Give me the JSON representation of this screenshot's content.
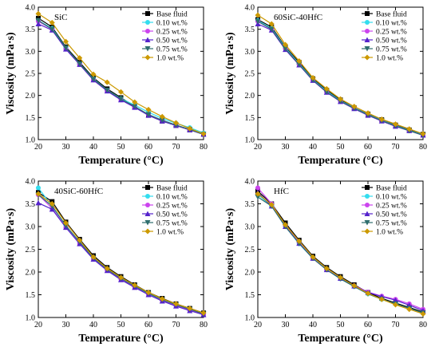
{
  "chart_data": [
    {
      "type": "line",
      "title": "SiC",
      "xlabel": "Temperature (°C)",
      "ylabel": "Viscosity (mPa·s)",
      "xlim": [
        20,
        80
      ],
      "ylim": [
        1.0,
        4.0
      ],
      "xticks": [
        "20",
        "30",
        "40",
        "50",
        "60",
        "70",
        "80"
      ],
      "yticks": [
        "1.0",
        "1.5",
        "2.0",
        "2.5",
        "3.0",
        "3.5",
        "4.0"
      ],
      "legend_position": "top-right",
      "x": [
        20,
        25,
        30,
        35,
        40,
        45,
        50,
        55,
        60,
        65,
        70,
        75,
        80
      ],
      "series": [
        {
          "name": "Base fluid",
          "color": "#000000",
          "marker": "square",
          "values": [
            3.75,
            3.55,
            3.1,
            2.75,
            2.4,
            2.15,
            1.95,
            1.75,
            1.55,
            1.42,
            1.32,
            1.22,
            1.12
          ]
        },
        {
          "name": "0.10 wt.%",
          "color": "#33ddee",
          "marker": "circle",
          "values": [
            3.7,
            3.52,
            3.08,
            2.72,
            2.38,
            2.12,
            1.93,
            1.78,
            1.62,
            1.48,
            1.37,
            1.27,
            1.15
          ]
        },
        {
          "name": "0.25 wt.%",
          "color": "#cc44ee",
          "marker": "circle",
          "values": [
            3.68,
            3.5,
            3.05,
            2.7,
            2.35,
            2.1,
            1.9,
            1.73,
            1.56,
            1.43,
            1.33,
            1.22,
            1.12
          ]
        },
        {
          "name": "0.50 wt.%",
          "color": "#5522cc",
          "marker": "triangle",
          "values": [
            3.62,
            3.48,
            3.05,
            2.7,
            2.35,
            2.1,
            1.9,
            1.73,
            1.55,
            1.42,
            1.32,
            1.22,
            1.12
          ]
        },
        {
          "name": "0.75 wt.%",
          "color": "#2e6e6e",
          "marker": "triangle-down",
          "values": [
            3.7,
            3.5,
            3.08,
            2.72,
            2.37,
            2.12,
            1.92,
            1.75,
            1.57,
            1.44,
            1.33,
            1.23,
            1.12
          ]
        },
        {
          "name": "1.0 wt.%",
          "color": "#cc9900",
          "marker": "diamond",
          "values": [
            3.85,
            3.65,
            3.22,
            2.85,
            2.48,
            2.3,
            2.08,
            1.85,
            1.68,
            1.52,
            1.38,
            1.25,
            1.13
          ]
        }
      ]
    },
    {
      "type": "line",
      "title": "60SiC-40HfC",
      "xlabel": "Temperature (°C)",
      "ylabel": "Viscosity (mPa·s)",
      "xlim": [
        20,
        80
      ],
      "ylim": [
        1.0,
        4.0
      ],
      "xticks": [
        "20",
        "30",
        "40",
        "50",
        "60",
        "70",
        "80"
      ],
      "yticks": [
        "1.0",
        "1.5",
        "2.0",
        "2.5",
        "3.0",
        "3.5",
        "4.0"
      ],
      "legend_position": "top-right",
      "x": [
        20,
        25,
        30,
        35,
        40,
        45,
        50,
        55,
        60,
        65,
        70,
        75,
        80
      ],
      "series": [
        {
          "name": "Base fluid",
          "color": "#000000",
          "marker": "square",
          "values": [
            3.72,
            3.55,
            3.1,
            2.75,
            2.38,
            2.12,
            1.9,
            1.72,
            1.58,
            1.45,
            1.33,
            1.22,
            1.12
          ]
        },
        {
          "name": "0.10 wt.%",
          "color": "#33ddee",
          "marker": "circle",
          "values": [
            3.7,
            3.52,
            3.08,
            2.72,
            2.36,
            2.1,
            1.88,
            1.72,
            1.57,
            1.44,
            1.32,
            1.21,
            1.11
          ]
        },
        {
          "name": "0.25 wt.%",
          "color": "#cc44ee",
          "marker": "circle",
          "values": [
            3.68,
            3.5,
            3.06,
            2.7,
            2.35,
            2.08,
            1.87,
            1.71,
            1.56,
            1.43,
            1.31,
            1.2,
            1.1
          ]
        },
        {
          "name": "0.50 wt.%",
          "color": "#5522cc",
          "marker": "triangle",
          "values": [
            3.62,
            3.48,
            3.04,
            2.69,
            2.34,
            2.07,
            1.86,
            1.7,
            1.55,
            1.42,
            1.3,
            1.2,
            1.1
          ]
        },
        {
          "name": "0.75 wt.%",
          "color": "#2e6e6e",
          "marker": "triangle-down",
          "values": [
            3.68,
            3.5,
            3.06,
            2.7,
            2.35,
            2.08,
            1.87,
            1.71,
            1.56,
            1.43,
            1.31,
            1.2,
            1.1
          ]
        },
        {
          "name": "1.0 wt.%",
          "color": "#cc9900",
          "marker": "diamond",
          "values": [
            3.82,
            3.62,
            3.15,
            2.78,
            2.4,
            2.15,
            1.92,
            1.75,
            1.6,
            1.46,
            1.35,
            1.24,
            1.13
          ]
        }
      ]
    },
    {
      "type": "line",
      "title": "40SiC-60HfC",
      "xlabel": "Temperature (°C)",
      "ylabel": "Viscosity (mPa·s)",
      "xlim": [
        20,
        80
      ],
      "ylim": [
        1.0,
        4.0
      ],
      "xticks": [
        "20",
        "30",
        "40",
        "50",
        "60",
        "70",
        "80"
      ],
      "yticks": [
        "1.0",
        "1.5",
        "2.0",
        "2.5",
        "3.0",
        "3.5",
        "4.0"
      ],
      "legend_position": "top-right",
      "x": [
        20,
        25,
        30,
        35,
        40,
        45,
        50,
        55,
        60,
        65,
        70,
        75,
        80
      ],
      "series": [
        {
          "name": "Base fluid",
          "color": "#000000",
          "marker": "square",
          "values": [
            3.75,
            3.55,
            3.1,
            2.72,
            2.36,
            2.1,
            1.9,
            1.72,
            1.55,
            1.42,
            1.3,
            1.2,
            1.1
          ]
        },
        {
          "name": "0.10 wt.%",
          "color": "#33ddee",
          "marker": "circle",
          "values": [
            3.85,
            3.45,
            3.02,
            2.65,
            2.3,
            2.05,
            1.85,
            1.68,
            1.52,
            1.38,
            1.27,
            1.17,
            1.08
          ]
        },
        {
          "name": "0.25 wt.%",
          "color": "#cc44ee",
          "marker": "circle",
          "values": [
            3.7,
            3.4,
            2.98,
            2.63,
            2.28,
            2.04,
            1.84,
            1.67,
            1.5,
            1.37,
            1.26,
            1.16,
            1.07
          ]
        },
        {
          "name": "0.50 wt.%",
          "color": "#5522cc",
          "marker": "triangle",
          "values": [
            3.52,
            3.38,
            2.98,
            2.62,
            2.28,
            2.03,
            1.83,
            1.66,
            1.5,
            1.36,
            1.25,
            1.15,
            1.06
          ]
        },
        {
          "name": "0.75 wt.%",
          "color": "#2e6e6e",
          "marker": "triangle-down",
          "values": [
            3.7,
            3.45,
            3.02,
            2.66,
            2.31,
            2.06,
            1.86,
            1.69,
            1.53,
            1.39,
            1.28,
            1.18,
            1.08
          ]
        },
        {
          "name": "1.0 wt.%",
          "color": "#cc9900",
          "marker": "diamond",
          "values": [
            3.72,
            3.5,
            3.08,
            2.7,
            2.33,
            2.08,
            1.88,
            1.71,
            1.55,
            1.41,
            1.3,
            1.2,
            1.1
          ]
        }
      ]
    },
    {
      "type": "line",
      "title": "HfC",
      "xlabel": "Temperature (°C)",
      "ylabel": "Viscosity (mPa·s)",
      "xlim": [
        20,
        80
      ],
      "ylim": [
        1.0,
        4.0
      ],
      "xticks": [
        "20",
        "30",
        "40",
        "50",
        "60",
        "70",
        "80"
      ],
      "yticks": [
        "1.0",
        "1.5",
        "2.0",
        "2.5",
        "3.0",
        "3.5",
        "4.0"
      ],
      "legend_position": "top-right",
      "x": [
        20,
        25,
        30,
        35,
        40,
        45,
        50,
        55,
        60,
        65,
        70,
        75,
        80
      ],
      "series": [
        {
          "name": "Base fluid",
          "color": "#000000",
          "marker": "square",
          "values": [
            3.78,
            3.5,
            3.08,
            2.7,
            2.35,
            2.1,
            1.9,
            1.72,
            1.55,
            1.42,
            1.32,
            1.22,
            1.12
          ]
        },
        {
          "name": "0.10 wt.%",
          "color": "#33ddee",
          "marker": "circle",
          "values": [
            3.7,
            3.45,
            3.0,
            2.62,
            2.3,
            2.05,
            1.85,
            1.68,
            1.52,
            1.4,
            1.3,
            1.2,
            1.1
          ]
        },
        {
          "name": "0.25 wt.%",
          "color": "#cc44ee",
          "marker": "circle",
          "values": [
            3.85,
            3.5,
            3.02,
            2.65,
            2.3,
            2.05,
            1.86,
            1.7,
            1.56,
            1.47,
            1.4,
            1.3,
            1.18
          ]
        },
        {
          "name": "0.50 wt.%",
          "color": "#5522cc",
          "marker": "triangle",
          "values": [
            3.75,
            3.45,
            3.0,
            2.63,
            2.3,
            2.05,
            1.86,
            1.69,
            1.55,
            1.46,
            1.38,
            1.27,
            1.15
          ]
        },
        {
          "name": "0.75 wt.%",
          "color": "#2e6e6e",
          "marker": "triangle-down",
          "values": [
            3.65,
            3.45,
            3.0,
            2.63,
            2.3,
            2.05,
            1.85,
            1.68,
            1.52,
            1.4,
            1.3,
            1.2,
            1.1
          ]
        },
        {
          "name": "1.0 wt.%",
          "color": "#cc9900",
          "marker": "diamond",
          "values": [
            3.72,
            3.48,
            3.04,
            2.68,
            2.33,
            2.08,
            1.88,
            1.7,
            1.53,
            1.4,
            1.28,
            1.18,
            1.08
          ]
        }
      ]
    }
  ]
}
